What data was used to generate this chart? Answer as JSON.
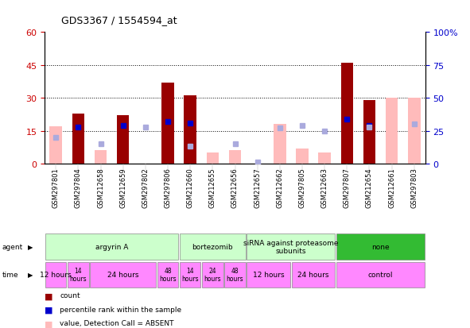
{
  "title": "GDS3367 / 1554594_at",
  "samples": [
    "GSM297801",
    "GSM297804",
    "GSM212658",
    "GSM212659",
    "GSM297802",
    "GSM297806",
    "GSM212660",
    "GSM212655",
    "GSM212656",
    "GSM212657",
    "GSM212662",
    "GSM297805",
    "GSM212663",
    "GSM297807",
    "GSM212654",
    "GSM212661",
    "GSM297803"
  ],
  "count_values": [
    null,
    23,
    null,
    22,
    null,
    37,
    31,
    null,
    null,
    null,
    null,
    null,
    null,
    46,
    29,
    null,
    null
  ],
  "count_absent_values": [
    17,
    null,
    6,
    null,
    null,
    null,
    null,
    5,
    6,
    null,
    18,
    7,
    5,
    null,
    null,
    30,
    30
  ],
  "percentile_rank": [
    null,
    28,
    null,
    29,
    null,
    32,
    31,
    null,
    null,
    null,
    null,
    null,
    null,
    34,
    29,
    null,
    null
  ],
  "percentile_rank_absent": [
    20,
    null,
    15,
    null,
    28,
    null,
    13,
    null,
    15,
    1,
    27,
    29,
    25,
    null,
    28,
    null,
    30
  ],
  "ylim_left": [
    0,
    60
  ],
  "ylim_right": [
    0,
    100
  ],
  "left_ticks": [
    0,
    15,
    30,
    45,
    60
  ],
  "right_ticks": [
    0,
    25,
    50,
    75,
    100
  ],
  "agent_groups": [
    {
      "label": "argyrin A",
      "start": 0,
      "end": 6,
      "color": "#ccffcc"
    },
    {
      "label": "bortezomib",
      "start": 6,
      "end": 9,
      "color": "#ccffcc"
    },
    {
      "label": "siRNA against proteasome\nsubunits",
      "start": 9,
      "end": 13,
      "color": "#ccffcc"
    },
    {
      "label": "none",
      "start": 13,
      "end": 17,
      "color": "#33bb33"
    }
  ],
  "time_groups": [
    {
      "label": "12 hours",
      "start": 0,
      "end": 1,
      "large": true
    },
    {
      "label": "14\nhours",
      "start": 1,
      "end": 2,
      "large": false
    },
    {
      "label": "24 hours",
      "start": 2,
      "end": 5,
      "large": true
    },
    {
      "label": "48\nhours",
      "start": 5,
      "end": 6,
      "large": false
    },
    {
      "label": "14\nhours",
      "start": 6,
      "end": 7,
      "large": false
    },
    {
      "label": "24\nhours",
      "start": 7,
      "end": 8,
      "large": false
    },
    {
      "label": "48\nhours",
      "start": 8,
      "end": 9,
      "large": false
    },
    {
      "label": "12 hours",
      "start": 9,
      "end": 11,
      "large": true
    },
    {
      "label": "24 hours",
      "start": 11,
      "end": 13,
      "large": true
    },
    {
      "label": "control",
      "start": 13,
      "end": 17,
      "large": true
    }
  ],
  "count_color": "#990000",
  "count_absent_color": "#ffbbbb",
  "rank_color": "#0000cc",
  "rank_absent_color": "#aaaadd",
  "bg_color": "#ffffff",
  "axis_label_color_left": "#cc0000",
  "axis_label_color_right": "#0000cc",
  "agent_color_light": "#ccffcc",
  "agent_color_dark": "#33bb33",
  "time_color": "#ff88ff"
}
